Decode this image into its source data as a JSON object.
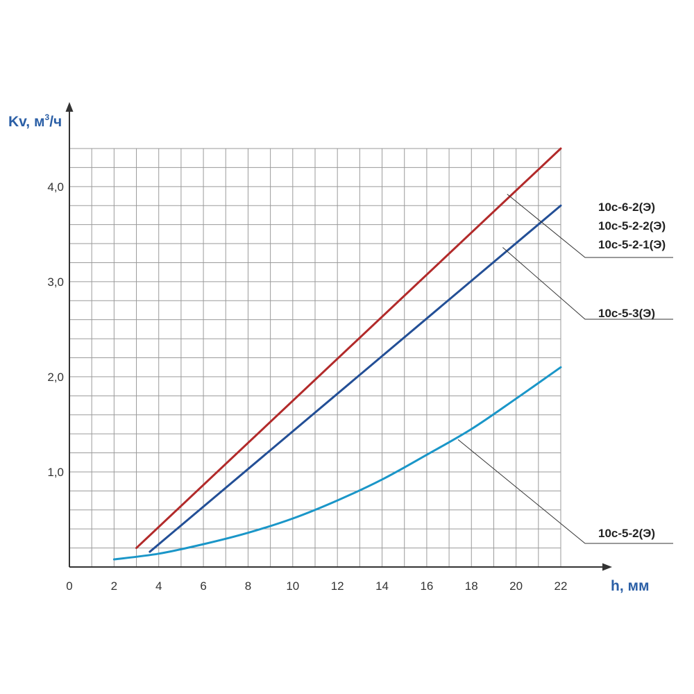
{
  "chart_data": {
    "type": "line",
    "xlabel": "h, мм",
    "ylabel": "Kv, м³/ч",
    "ylabel_parts": {
      "main": "Kv, м",
      "sup": "3",
      "tail": "/ч"
    },
    "xlim": [
      0,
      22
    ],
    "ylim": [
      0,
      4.4
    ],
    "grid": true,
    "x_ticks": [
      "0",
      "2",
      "4",
      "6",
      "8",
      "10",
      "12",
      "14",
      "16",
      "18",
      "20",
      "22"
    ],
    "y_ticks": [
      {
        "value": 1.0,
        "label": "1,0"
      },
      {
        "value": 2.0,
        "label": "2,0"
      },
      {
        "value": 3.0,
        "label": "3,0"
      },
      {
        "value": 4.0,
        "label": "4,0"
      }
    ],
    "series": [
      {
        "name": "10с-6-2(Э)",
        "color": "#b22a2a",
        "x": [
          3,
          22
        ],
        "y": [
          0.2,
          4.4
        ]
      },
      {
        "name": "10с-5-3(Э)",
        "color": "#234f96",
        "x": [
          3.6,
          22
        ],
        "y": [
          0.16,
          3.8
        ]
      },
      {
        "name": "10с-5-2(Э)",
        "color": "#1a96c8",
        "x": [
          2,
          4,
          6,
          8,
          10,
          12,
          14,
          16,
          18,
          20,
          22
        ],
        "y": [
          0.08,
          0.14,
          0.24,
          0.36,
          0.51,
          0.7,
          0.92,
          1.18,
          1.45,
          1.77,
          2.1
        ]
      }
    ],
    "annotations": [
      {
        "series": "10с-6-2(Э)",
        "labels": [
          "10с-6-2(Э)",
          "10с-5-2-2(Э)",
          "10с-5-2-1(Э)"
        ],
        "point": [
          19.6,
          3.92
        ]
      },
      {
        "series": "10с-5-3(Э)",
        "labels": [
          "10с-5-3(Э)"
        ],
        "point": [
          19.4,
          3.36
        ]
      },
      {
        "series": "10с-5-2(Э)",
        "labels": [
          "10с-5-2(Э)"
        ],
        "point": [
          17.4,
          1.34
        ]
      }
    ]
  }
}
